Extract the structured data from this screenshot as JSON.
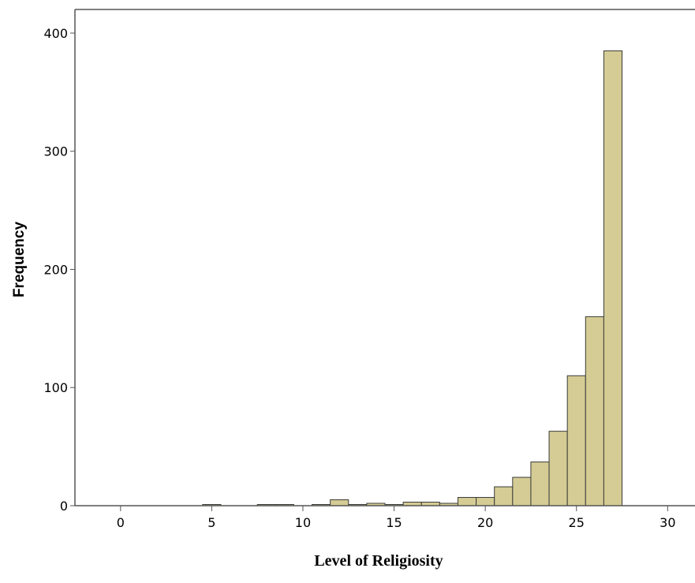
{
  "chart_data": {
    "type": "bar",
    "title": "",
    "xlabel": "Level of Religiosity",
    "ylabel": "Frequency",
    "bin_width": 1,
    "xlim": [
      -2.5,
      31.5
    ],
    "ylim": [
      0,
      420
    ],
    "xticks": [
      0,
      5,
      10,
      15,
      20,
      25,
      30
    ],
    "yticks": [
      0,
      100,
      200,
      300,
      400
    ],
    "bar_color": "#d4cc94",
    "edge_color": "#3a3a3a",
    "grid": false,
    "bins": [
      {
        "x": 5,
        "count": 1
      },
      {
        "x": 8,
        "count": 1
      },
      {
        "x": 9,
        "count": 1
      },
      {
        "x": 11,
        "count": 1
      },
      {
        "x": 12,
        "count": 5
      },
      {
        "x": 13,
        "count": 1
      },
      {
        "x": 14,
        "count": 2
      },
      {
        "x": 15,
        "count": 1
      },
      {
        "x": 16,
        "count": 3
      },
      {
        "x": 17,
        "count": 3
      },
      {
        "x": 18,
        "count": 2
      },
      {
        "x": 19,
        "count": 7
      },
      {
        "x": 20,
        "count": 7
      },
      {
        "x": 21,
        "count": 16
      },
      {
        "x": 22,
        "count": 24
      },
      {
        "x": 23,
        "count": 37
      },
      {
        "x": 24,
        "count": 63
      },
      {
        "x": 25,
        "count": 110
      },
      {
        "x": 26,
        "count": 160
      },
      {
        "x": 27,
        "count": 385
      }
    ]
  }
}
